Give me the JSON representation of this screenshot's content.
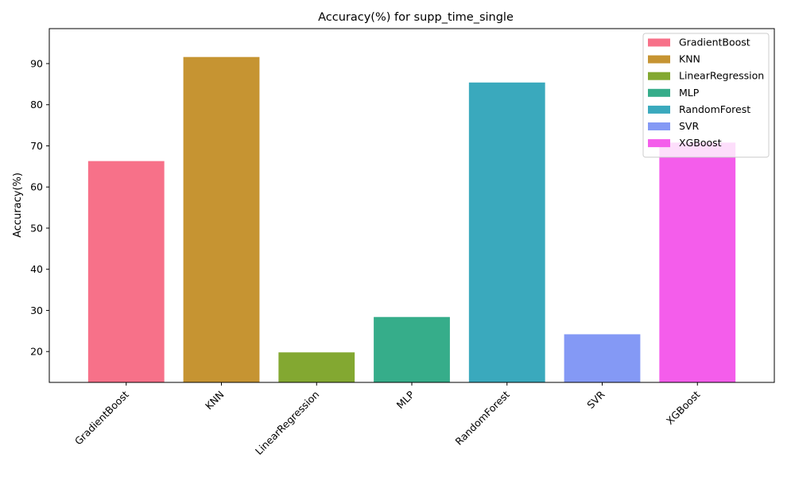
{
  "chart_data": {
    "type": "bar",
    "title": "Accuracy(%) for supp_time_single",
    "xlabel": "",
    "ylabel": "Accuracy(%)",
    "ylim": [
      12.5,
      98.5
    ],
    "yticks": [
      20,
      30,
      40,
      50,
      60,
      70,
      80,
      90
    ],
    "grid": false,
    "legend_position": "top-right",
    "categories": [
      "GradientBoost",
      "KNN",
      "LinearRegression",
      "MLP",
      "RandomForest",
      "SVR",
      "XGBoost"
    ],
    "values": [
      66.3,
      91.6,
      19.8,
      28.4,
      85.4,
      24.2,
      70.8
    ],
    "colors": [
      "#f77189",
      "#c69432",
      "#83a831",
      "#36ad8a",
      "#3aa9bd",
      "#8499f5",
      "#f45deb"
    ]
  }
}
